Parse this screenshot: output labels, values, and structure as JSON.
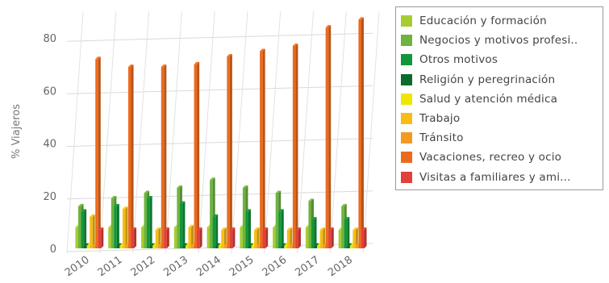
{
  "chart_data": {
    "type": "bar",
    "title": "",
    "xlabel": "",
    "ylabel": "% Viajeros",
    "ylim": [
      0,
      90
    ],
    "y_ticks": [
      0,
      20,
      40,
      60,
      80
    ],
    "grid": true,
    "legend_position": "right",
    "categories": [
      "2010",
      "2011",
      "2012",
      "2013",
      "2014",
      "2015",
      "2016",
      "2017",
      "2018"
    ],
    "series": [
      {
        "name": "Educación y formación",
        "color": "#a6cc32",
        "values": [
          8,
          8,
          8,
          8,
          8,
          8,
          8,
          8,
          7
        ]
      },
      {
        "name": "Negocios y motivos profesi..",
        "color": "#6db33f",
        "values": [
          16,
          19,
          21,
          23,
          26,
          23,
          21,
          18,
          16
        ]
      },
      {
        "name": "Otros motivos",
        "color": "#12963c",
        "values": [
          14,
          16,
          19,
          17,
          12,
          14,
          14,
          11,
          11
        ]
      },
      {
        "name": "Religión y peregrinación",
        "color": "#0b6a2e",
        "values": [
          1,
          1,
          1,
          1,
          1,
          1,
          1,
          1,
          1
        ]
      },
      {
        "name": "Salud y atención médica",
        "color": "#f0e600",
        "values": [
          1,
          1,
          1,
          1,
          1,
          1,
          1,
          1,
          1
        ]
      },
      {
        "name": "Trabajo",
        "color": "#f7bd16",
        "values": [
          12,
          15,
          7,
          8,
          7,
          7,
          7,
          7,
          7
        ]
      },
      {
        "name": "Tránsito",
        "color": "#f39a25",
        "values": [
          1,
          1,
          1,
          1,
          1,
          1,
          1,
          1,
          1
        ]
      },
      {
        "name": "Vacaciones, recreo y ocio",
        "color": "#ec6a1e",
        "values": [
          72,
          69,
          69,
          70,
          73,
          75,
          77,
          84,
          87
        ]
      },
      {
        "name": "Visitas a familiares y ami...",
        "color": "#e2403a",
        "values": [
          7,
          7,
          7,
          7,
          7,
          7,
          7,
          7,
          7
        ]
      }
    ]
  }
}
